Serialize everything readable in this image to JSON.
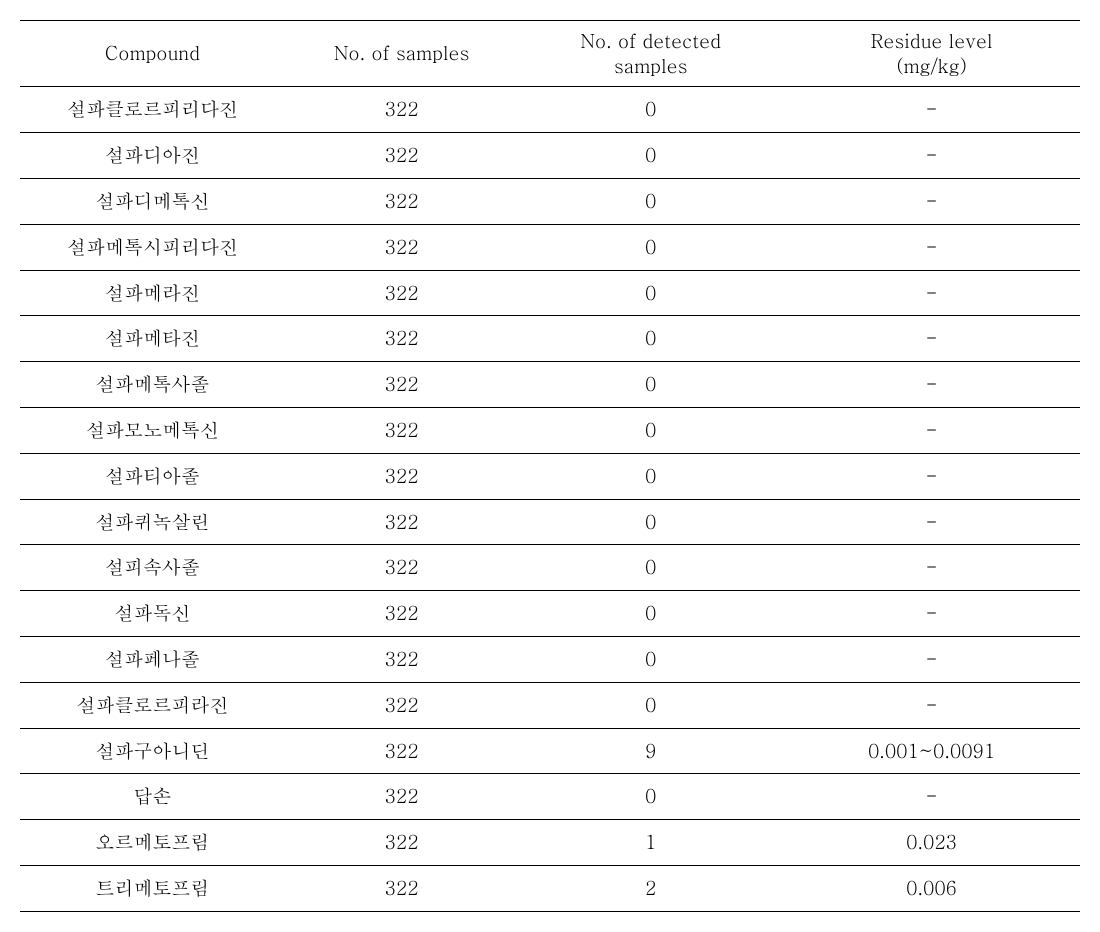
{
  "table": {
    "columns": [
      {
        "label": "Compound"
      },
      {
        "label": "No. of samples"
      },
      {
        "label_line1": "No. of detected",
        "label_line2": "samples"
      },
      {
        "label_line1": "Residue level",
        "label_line2": "(mg/kg)"
      }
    ],
    "rows": [
      {
        "compound": "설파클로르피리다진",
        "samples": "322",
        "detected": "0",
        "residue": "-"
      },
      {
        "compound": "설파디아진",
        "samples": "322",
        "detected": "0",
        "residue": "-"
      },
      {
        "compound": "설파디메톡신",
        "samples": "322",
        "detected": "0",
        "residue": "-"
      },
      {
        "compound": "설파메톡시피리다진",
        "samples": "322",
        "detected": "0",
        "residue": "-"
      },
      {
        "compound": "설파메라진",
        "samples": "322",
        "detected": "0",
        "residue": "-"
      },
      {
        "compound": "설파메타진",
        "samples": "322",
        "detected": "0",
        "residue": "-"
      },
      {
        "compound": "설파메톡사졸",
        "samples": "322",
        "detected": "0",
        "residue": "-"
      },
      {
        "compound": "설파모노메톡신",
        "samples": "322",
        "detected": "0",
        "residue": "-"
      },
      {
        "compound": "설파티아졸",
        "samples": "322",
        "detected": "0",
        "residue": "-"
      },
      {
        "compound": "설파퀴녹살린",
        "samples": "322",
        "detected": "0",
        "residue": "-"
      },
      {
        "compound": "설피속사졸",
        "samples": "322",
        "detected": "0",
        "residue": "-"
      },
      {
        "compound": "설파독신",
        "samples": "322",
        "detected": "0",
        "residue": "-"
      },
      {
        "compound": "설파페나졸",
        "samples": "322",
        "detected": "0",
        "residue": "-"
      },
      {
        "compound": "설파클로르피라진",
        "samples": "322",
        "detected": "0",
        "residue": "-"
      },
      {
        "compound": "설파구아니딘",
        "samples": "322",
        "detected": "9",
        "residue": "0.001~0.0091"
      },
      {
        "compound": "답손",
        "samples": "322",
        "detected": "0",
        "residue": "-"
      },
      {
        "compound": "오르메토프림",
        "samples": "322",
        "detected": "1",
        "residue": "0.023"
      },
      {
        "compound": "트리메토프림",
        "samples": "322",
        "detected": "2",
        "residue": "0.006"
      }
    ],
    "border_color": "#000000",
    "background_color": "#ffffff",
    "text_color": "#000000",
    "header_fontsize": 19,
    "cell_fontsize": 19
  }
}
